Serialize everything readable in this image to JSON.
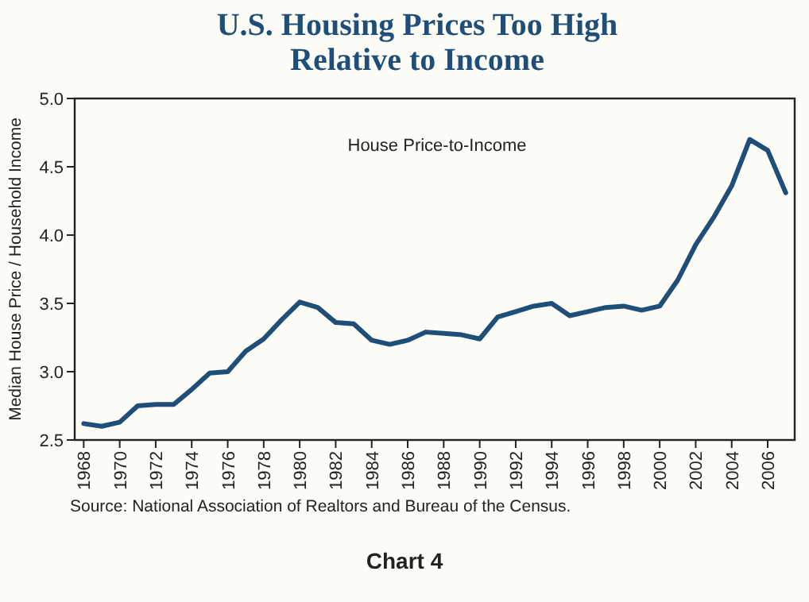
{
  "chart_data": {
    "type": "line",
    "title": "U.S. Housing Prices Too High\nRelative to Income",
    "ylabel": "Median House Price / Household Income",
    "x": [
      1968,
      1969,
      1970,
      1971,
      1972,
      1973,
      1974,
      1975,
      1976,
      1977,
      1978,
      1979,
      1980,
      1981,
      1982,
      1983,
      1984,
      1985,
      1986,
      1987,
      1988,
      1989,
      1990,
      1991,
      1992,
      1993,
      1994,
      1995,
      1996,
      1997,
      1998,
      1999,
      2000,
      2001,
      2002,
      2003,
      2004,
      2005,
      2006,
      2007
    ],
    "series": [
      {
        "name": "House Price-to-Income",
        "color": "#1f4e79",
        "values": [
          2.62,
          2.6,
          2.63,
          2.75,
          2.76,
          2.76,
          2.87,
          2.99,
          3.0,
          3.15,
          3.24,
          3.38,
          3.51,
          3.47,
          3.36,
          3.35,
          3.23,
          3.2,
          3.23,
          3.29,
          3.28,
          3.27,
          3.24,
          3.4,
          3.44,
          3.48,
          3.5,
          3.41,
          3.44,
          3.47,
          3.48,
          3.45,
          3.48,
          3.67,
          3.93,
          4.13,
          4.36,
          4.7,
          4.62,
          4.31
        ]
      }
    ],
    "xlim": [
      1967.5,
      2007.5
    ],
    "xticks": [
      1968,
      1970,
      1972,
      1974,
      1976,
      1978,
      1980,
      1982,
      1984,
      1986,
      1988,
      1990,
      1992,
      1994,
      1996,
      1998,
      2000,
      2002,
      2004,
      2006
    ],
    "ylim": [
      2.5,
      5.0
    ],
    "yticks": [
      {
        "value": 2.5,
        "label": "2.5"
      },
      {
        "value": 3,
        "label": "3.0"
      },
      {
        "value": 3.5,
        "label": "3.5"
      },
      {
        "value": 4,
        "label": "4.0"
      },
      {
        "value": 4.5,
        "label": "4.5"
      },
      {
        "value": 5,
        "label": "5.0"
      }
    ],
    "grid": false,
    "line_style": "solid",
    "marker": "none",
    "annotations": [
      "Source: National Association of Realtors and Bureau of the Census.",
      "Chart 4"
    ]
  }
}
